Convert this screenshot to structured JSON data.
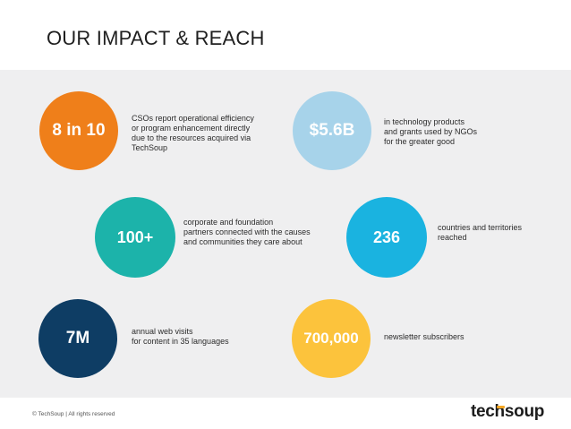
{
  "header": {
    "title": "OUR IMPACT & REACH"
  },
  "stats": [
    {
      "value": "8 in 10",
      "lines": [
        "CSOs report operational efficiency",
        "or program enhancement directly",
        "due to the resources acquired via",
        "TechSoup"
      ],
      "color": "#ef7f1a"
    },
    {
      "value": "$5.6B",
      "lines": [
        "in technology products",
        "and grants used by NGOs",
        "for the greater good"
      ],
      "color": "#a7d3ea"
    },
    {
      "value": "100+",
      "lines": [
        "corporate and foundation",
        "partners connected with the causes",
        "and communities they care about"
      ],
      "color": "#1cb3aa"
    },
    {
      "value": "236",
      "lines": [
        "countries and territories",
        "reached"
      ],
      "color": "#1ab3e0"
    },
    {
      "value": "7M",
      "lines": [
        "annual web visits",
        "for content in 35 languages"
      ],
      "color": "#0e3d64"
    },
    {
      "value": "700,000",
      "lines": [
        "newsletter subscribers"
      ],
      "color": "#fcc33c"
    }
  ],
  "footer": {
    "copyright": "© TechSoup | All rights reserved",
    "logo_text": "techsoup"
  }
}
